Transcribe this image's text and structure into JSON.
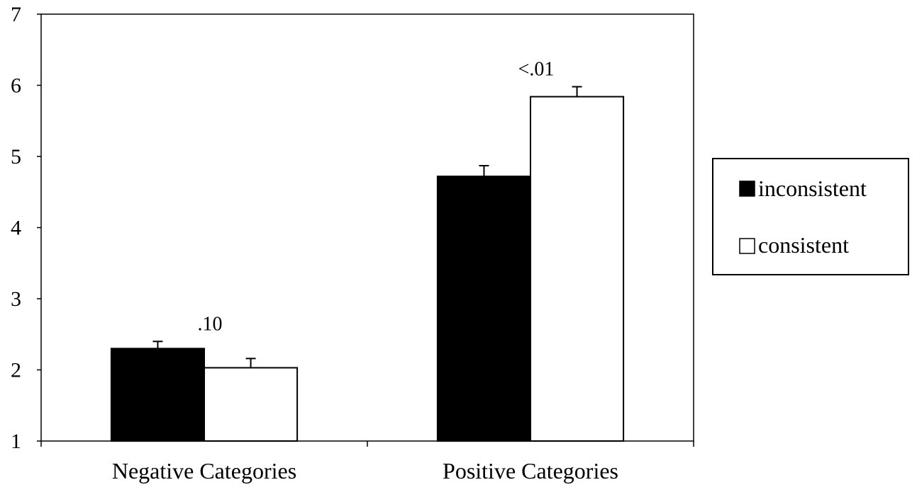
{
  "chart_data": {
    "type": "bar",
    "title": "",
    "xlabel": "",
    "ylabel": "",
    "ylim": [
      1,
      7
    ],
    "yticks": [
      "1",
      "2",
      "3",
      "4",
      "5",
      "6",
      "7"
    ],
    "categories": [
      "Negative Categories",
      "Positive Categories"
    ],
    "series": [
      {
        "name": "inconsistent",
        "values": [
          2.3,
          4.72
        ],
        "errors": [
          0.1,
          0.15
        ],
        "color": "#000000"
      },
      {
        "name": "consistent",
        "values": [
          2.03,
          5.84
        ],
        "errors": [
          0.13,
          0.14
        ],
        "color": "#ffffff"
      }
    ],
    "annotations": [
      {
        "category_index": 0,
        "text": ".10"
      },
      {
        "category_index": 1,
        "text": "<.01"
      }
    ],
    "legend_position": "right",
    "grid": false
  }
}
